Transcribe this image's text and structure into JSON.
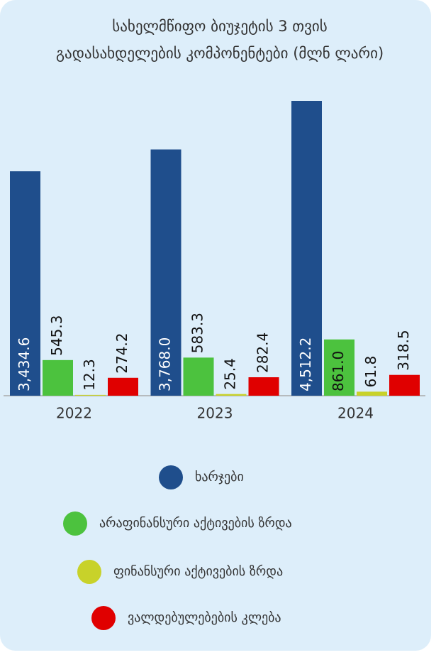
{
  "chart_data": {
    "type": "bar",
    "title": [
      "სახელმწიფო ბიუჯეტის 3 თვის",
      "გადასახდელების კომპონენტები (მლნ ლარი)"
    ],
    "categories": [
      "2022",
      "2023",
      "2024"
    ],
    "series": [
      {
        "name": "ხარჯები",
        "color": "#1f4e8c",
        "values": [
          3434.6,
          3768.0,
          4512.2
        ],
        "value_labels": [
          "3,434.6",
          "3,768.0",
          "4,512.2"
        ]
      },
      {
        "name": "არაფინანსური აქტივების ზრდა",
        "color": "#4cc23e",
        "values": [
          545.3,
          583.3,
          861.0
        ],
        "value_labels": [
          "545.3",
          "583.3",
          "861.0"
        ]
      },
      {
        "name": "ფინანსური აქტივების ზრდა",
        "color": "#c8d22a",
        "values": [
          12.3,
          25.4,
          61.8
        ]
      },
      {
        "name": "ვალდებულებების კლება",
        "color": "#e00000",
        "values": [
          274.2,
          282.4,
          318.5
        ]
      }
    ]
  }
}
